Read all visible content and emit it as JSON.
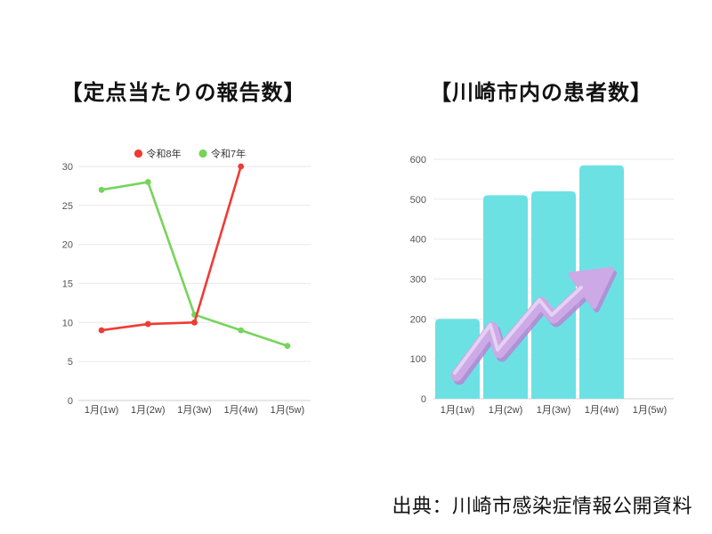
{
  "footer": {
    "source_text": "出典：川崎市感染症情報公開資料"
  },
  "chart_data": [
    {
      "type": "line",
      "title": "【定点当たりの報告数】",
      "categories": [
        "1月(1w)",
        "1月(2w)",
        "1月(3w)",
        "1月(4w)",
        "1月(5w)"
      ],
      "series": [
        {
          "name": "令和8年",
          "color": "#ef3b33",
          "values": [
            9,
            9.8,
            10,
            30,
            null
          ]
        },
        {
          "name": "令和7年",
          "color": "#76d45b",
          "values": [
            27,
            28,
            11,
            9,
            7
          ]
        }
      ],
      "xlabel": "",
      "ylabel": "",
      "ylim": [
        0,
        30
      ],
      "ytick_step": 5,
      "grid": true,
      "legend_position": "top"
    },
    {
      "type": "bar",
      "title": "【川崎市内の患者数】",
      "categories": [
        "1月(1w)",
        "1月(2w)",
        "1月(3w)",
        "1月(4w)",
        "1月(5w)"
      ],
      "values": [
        200,
        510,
        520,
        585,
        null
      ],
      "bar_color": "#6ce1e4",
      "xlabel": "",
      "ylabel": "",
      "ylim": [
        0,
        600
      ],
      "ytick_step": 100,
      "grid": true,
      "legend_position": "none",
      "annotation": {
        "label": "upward-trend-zigzag-arrow",
        "color": "#cda9e6",
        "shadow_color": "#b38bd4",
        "highlight_color": "#e7d8f6"
      }
    }
  ],
  "style": {
    "grid_color": "#ececec",
    "zero_line_color": "#d9d9d9",
    "tick_label_color": "#555555",
    "category_label_color": "#444444",
    "legend_label_color": "#333333"
  }
}
